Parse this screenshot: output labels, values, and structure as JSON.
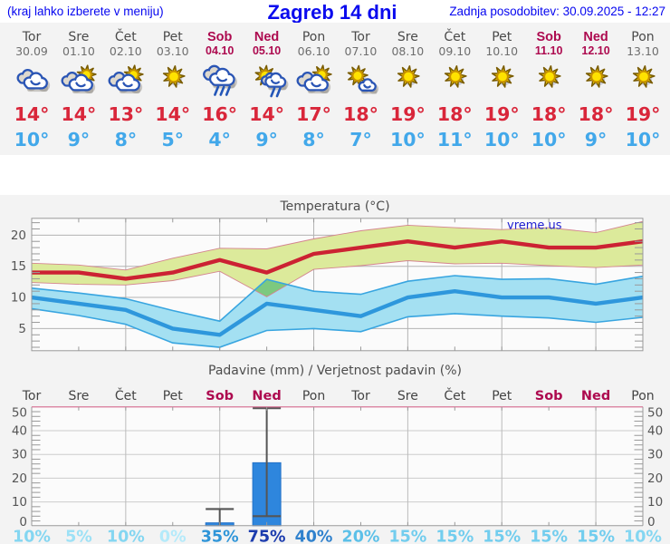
{
  "header": {
    "note": "(kraj lahko izberete v meniju)",
    "title": "Zagreb 14 dni",
    "updated": "Zadnja posodobitev: 30.09.2025 - 12:27"
  },
  "watermark": "vreme.us",
  "colors": {
    "header_blue": "#0b0bee",
    "panel_bg": "#f3f3f3",
    "plot_bg": "#fbfbfb",
    "weekend_red": "#ad0a4f",
    "weekday_gray": "#4d4d4d",
    "date_gray": "#707070",
    "tmax_red": "#dc2130",
    "tmin_blue": "#46acee",
    "grid_gray": "#b3b3b3",
    "axis_gray": "#999999",
    "label_gray": "#555555",
    "title_gray": "#4d4d4d"
  },
  "days": [
    {
      "name": "Tor",
      "date": "30.09",
      "icon": "cloudy",
      "tmax": "14°",
      "tmin": "10°",
      "weekend": false
    },
    {
      "name": "Sre",
      "date": "01.10",
      "icon": "sun-cloud",
      "tmax": "14°",
      "tmin": "9°",
      "weekend": false
    },
    {
      "name": "Čet",
      "date": "02.10",
      "icon": "sun-cloud",
      "tmax": "13°",
      "tmin": "8°",
      "weekend": false
    },
    {
      "name": "Pet",
      "date": "03.10",
      "icon": "sun",
      "tmax": "14°",
      "tmin": "5°",
      "weekend": false
    },
    {
      "name": "Sob",
      "date": "04.10",
      "icon": "rain",
      "tmax": "16°",
      "tmin": "4°",
      "weekend": true
    },
    {
      "name": "Ned",
      "date": "05.10",
      "icon": "sun-rain",
      "tmax": "14°",
      "tmin": "9°",
      "weekend": true
    },
    {
      "name": "Pon",
      "date": "06.10",
      "icon": "sun-cloud",
      "tmax": "17°",
      "tmin": "8°",
      "weekend": false
    },
    {
      "name": "Tor",
      "date": "07.10",
      "icon": "sun-small-cloud",
      "tmax": "18°",
      "tmin": "7°",
      "weekend": false
    },
    {
      "name": "Sre",
      "date": "08.10",
      "icon": "sun",
      "tmax": "19°",
      "tmin": "10°",
      "weekend": false
    },
    {
      "name": "Čet",
      "date": "09.10",
      "icon": "sun",
      "tmax": "18°",
      "tmin": "11°",
      "weekend": false
    },
    {
      "name": "Pet",
      "date": "10.10",
      "icon": "sun",
      "tmax": "19°",
      "tmin": "10°",
      "weekend": false
    },
    {
      "name": "Sob",
      "date": "11.10",
      "icon": "sun",
      "tmax": "18°",
      "tmin": "10°",
      "weekend": true
    },
    {
      "name": "Ned",
      "date": "12.10",
      "icon": "sun",
      "tmax": "18°",
      "tmin": "9°",
      "weekend": true
    },
    {
      "name": "Pon",
      "date": "13.10",
      "icon": "sun",
      "tmax": "19°",
      "tmin": "10°",
      "weekend": false
    }
  ],
  "chart_data": [
    {
      "type": "line",
      "title": "Temperatura (°C)",
      "ylabel": "",
      "xlabel": "",
      "ylim": [
        1.45,
        22.7
      ],
      "yticks": [
        5,
        10,
        15,
        20
      ],
      "grid_x_day_index": [
        2,
        4,
        6,
        8,
        10,
        12
      ],
      "legend": "none",
      "watermark": "vreme.us",
      "series": [
        {
          "name": "max temperature",
          "color": "#cc2233",
          "values": [
            14,
            14,
            13,
            14,
            16,
            14,
            17,
            18,
            19,
            18,
            19,
            18,
            18,
            19
          ]
        },
        {
          "name": "max temperature range",
          "kind": "band",
          "fill": "#dcea9b",
          "edge": "#d4848f",
          "upper": [
            15.5,
            15.2,
            14.4,
            16.3,
            17.9,
            17.8,
            19.4,
            20.7,
            21.6,
            21.2,
            20.9,
            21.2,
            20.4,
            22.2
          ],
          "lower": [
            12.4,
            12.1,
            12.0,
            12.7,
            14.2,
            10.1,
            14.5,
            15.1,
            15.9,
            15.4,
            15.5,
            15.1,
            14.8,
            15.2
          ]
        },
        {
          "name": "min temperature",
          "color": "#2e97dc",
          "values": [
            10,
            9,
            8,
            5,
            4,
            9,
            8,
            7,
            10,
            11,
            10,
            10,
            9,
            10
          ]
        },
        {
          "name": "min temperature range",
          "kind": "band",
          "fill": "#a4e0f2",
          "edge": "#38a5e0",
          "upper": [
            11.5,
            10.7,
            9.8,
            7.9,
            6.2,
            12.9,
            11.0,
            10.5,
            12.6,
            13.5,
            12.9,
            13.0,
            12.1,
            13.4
          ],
          "lower": [
            8.2,
            7.1,
            5.7,
            2.7,
            2.0,
            4.7,
            5.0,
            4.5,
            6.9,
            7.4,
            7.0,
            6.7,
            6.0,
            6.8
          ]
        }
      ],
      "band_overlap_fill": "#7cc97f"
    },
    {
      "type": "bar",
      "title": "Padavine (mm) / Verjetnost padavin (%)",
      "categories": [
        "Tor",
        "Sre",
        "Čet",
        "Pet",
        "Sob",
        "Ned",
        "Pon",
        "Tor",
        "Sre",
        "Čet",
        "Pet",
        "Sob",
        "Ned",
        "Pon"
      ],
      "weekend_idx": [
        4,
        5,
        11,
        12
      ],
      "values_mm": [
        0,
        0,
        0,
        0,
        1.2,
        26.5,
        0,
        0,
        0,
        0,
        0,
        0,
        0,
        0
      ],
      "range_low_mm": [
        0,
        0,
        0,
        0,
        0,
        4,
        0,
        0,
        0,
        0,
        0,
        0,
        0,
        0
      ],
      "range_high_mm": [
        0,
        0,
        0,
        0,
        7,
        49.5,
        0,
        0,
        0,
        0,
        0,
        0,
        0,
        0
      ],
      "probability_pct": [
        "10%",
        "5%",
        "10%",
        "0%",
        "35%",
        "75%",
        "40%",
        "20%",
        "15%",
        "15%",
        "15%",
        "15%",
        "15%",
        "10%"
      ],
      "prob_colors": {
        "0%": "#b4eafa",
        "5%": "#9de1f6",
        "10%": "#84d6f1",
        "15%": "#72cdee",
        "20%": "#5cc0e8",
        "35%": "#2f95d8",
        "40%": "#2f81cd",
        "75%": "#1c3cae"
      },
      "ylim": [
        0,
        50
      ],
      "yticks": [
        0,
        10,
        20,
        30,
        40,
        50
      ],
      "grid_x_day_index": [
        2,
        4,
        6,
        8,
        10,
        12
      ],
      "bar_color": "#2e86dd",
      "bar_edge": "#2472c8",
      "whisker_color": "#555555",
      "top_line_color": "#d4688c"
    }
  ]
}
